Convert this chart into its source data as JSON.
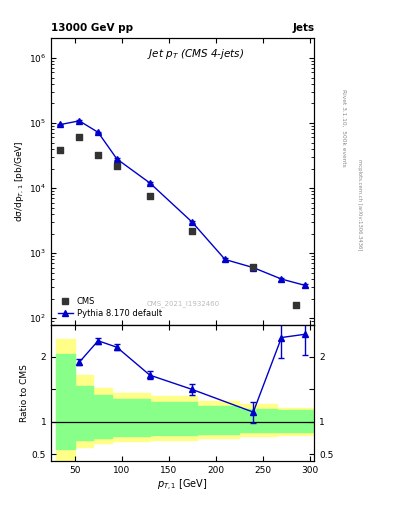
{
  "title": "13000 GeV pp",
  "title_right": "Jets",
  "plot_title": "Jet $p_T$ (CMS 4-jets)",
  "xlabel": "$p_{T,1}$ [GeV]",
  "ylabel_top": "dσ/dp$_{T,1}$ [pb/GeV]",
  "ylabel_bot": "Ratio to CMS",
  "watermark": "CMS_2021_I1932460",
  "right_label_top": "Rivet 3.1.10,  500k events",
  "right_label_bot": "mcplots.cern.ch [arXiv:1306.3436]",
  "cms_x": [
    35,
    55,
    75,
    95,
    130,
    175,
    240,
    285
  ],
  "cms_y": [
    38000,
    62000,
    32000,
    22000,
    7500,
    2200,
    620,
    160
  ],
  "pythia_x": [
    35,
    55,
    75,
    95,
    130,
    175,
    210,
    240,
    270,
    295
  ],
  "pythia_y": [
    95000,
    108000,
    72000,
    28000,
    12000,
    3000,
    800,
    600,
    400,
    320
  ],
  "pythia_yerr": [
    3000,
    3000,
    2000,
    1000,
    400,
    100,
    30,
    25,
    20,
    18
  ],
  "ratio_x": [
    55,
    75,
    95,
    130,
    175,
    240,
    270,
    295
  ],
  "ratio_y": [
    1.92,
    2.25,
    2.15,
    1.72,
    1.5,
    1.15,
    2.3,
    2.35
  ],
  "ratio_yerr": [
    0.05,
    0.05,
    0.05,
    0.06,
    0.08,
    0.16,
    0.32,
    0.32
  ],
  "band_yellow_edges": [
    30,
    50,
    70,
    90,
    130,
    180,
    225,
    265,
    305
  ],
  "band_yellow_lo": [
    0.42,
    0.62,
    0.67,
    0.7,
    0.72,
    0.75,
    0.78,
    0.8
  ],
  "band_yellow_hi": [
    2.28,
    1.72,
    1.52,
    1.45,
    1.4,
    1.32,
    1.28,
    1.22
  ],
  "band_green_edges": [
    30,
    50,
    70,
    90,
    130,
    180,
    225,
    265,
    305
  ],
  "band_green_lo": [
    0.58,
    0.72,
    0.75,
    0.78,
    0.8,
    0.82,
    0.84,
    0.85
  ],
  "band_green_hi": [
    2.05,
    1.55,
    1.42,
    1.36,
    1.3,
    1.24,
    1.2,
    1.18
  ],
  "xmin": 25,
  "xmax": 305,
  "ymin": 80,
  "ymax": 2000000,
  "ratio_ymin": 0.4,
  "ratio_ymax": 2.5,
  "color_cms": "#333333",
  "color_pythia": "#0000cc",
  "color_yellow": "#ffff88",
  "color_green": "#88ff88",
  "color_ref_line": "#000000"
}
